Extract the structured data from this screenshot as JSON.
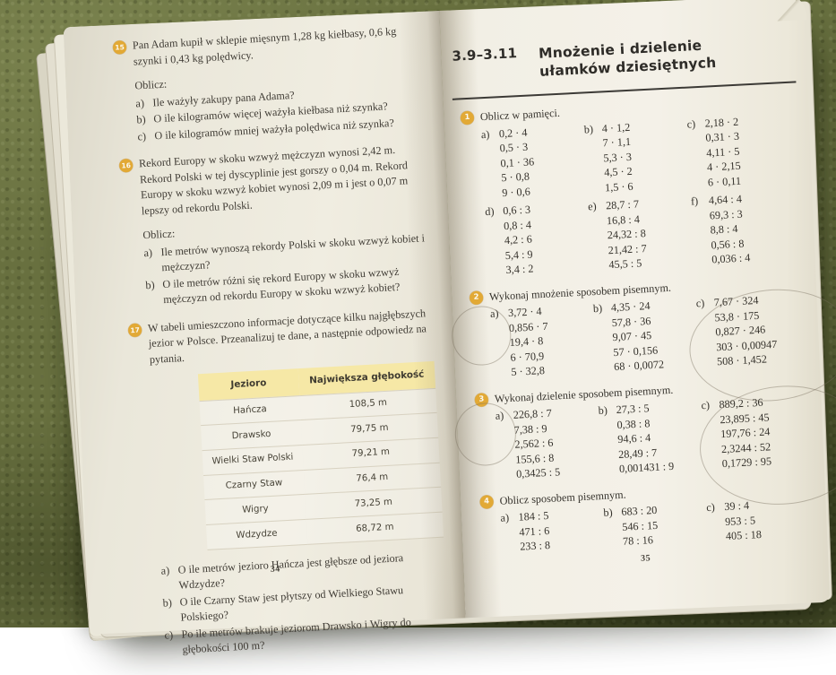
{
  "colors": {
    "carpet_green": "#68703f",
    "page_cream": "#f0ede1",
    "badge_yellow": "#e2a935",
    "table_header_yellow": "#f6e8a6",
    "bookmark_maroon": "#5b2c1f"
  },
  "left_page": {
    "page_number": "34",
    "problems": [
      {
        "number": "15",
        "text": "Pan Adam kupił w sklepie mięsnym 1,28 kg kiełbasy, 0,6 kg szynki i 0,43 kg polędwicy.",
        "compute_label": "Oblicz:",
        "questions": [
          {
            "label": "a)",
            "text": "Ile ważyły zakupy pana Adama?"
          },
          {
            "label": "b)",
            "text": "O ile kilogramów więcej ważyła kiełbasa niż szynka?"
          },
          {
            "label": "c)",
            "text": "O ile kilogramów mniej ważyła polędwica niż szynka?"
          }
        ]
      },
      {
        "number": "16",
        "text": "Rekord Europy w skoku wzwyż mężczyzn wynosi 2,42 m. Rekord Polski w tej dyscyplinie jest gorszy o 0,04 m. Rekord Europy w skoku wzwyż kobiet wynosi 2,09 m i jest o 0,07 m lepszy od rekordu Polski.",
        "compute_label": "Oblicz:",
        "questions": [
          {
            "label": "a)",
            "text": "Ile metrów wynoszą rekordy Polski w skoku wzwyż kobiet i mężczyzn?"
          },
          {
            "label": "b)",
            "text": "O ile metrów różni się rekord Europy w skoku wzwyż mężczyzn od rekordu Europy w skoku wzwyż kobiet?"
          }
        ]
      },
      {
        "number": "17",
        "text": "W tabeli umieszczono informacje dotyczące kilku najgłębszych jezior w Polsce. Przeanalizuj te dane, a następnie odpowiedz na pytania.",
        "questions": [
          {
            "label": "a)",
            "text": "O ile metrów jezioro Hańcza jest głębsze od jeziora Wdzydze?"
          },
          {
            "label": "b)",
            "text": "O ile Czarny Staw jest płytszy od Wielkiego Stawu Polskiego?"
          },
          {
            "label": "c)",
            "text": "Po ile metrów brakuje jeziorom Drawsko i Wigry do głębokości 100 m?"
          }
        ]
      }
    ],
    "table": {
      "headers": [
        "Jezioro",
        "Największa głębokość"
      ],
      "rows": [
        [
          "Hańcza",
          "108,5 m"
        ],
        [
          "Drawsko",
          "79,75 m"
        ],
        [
          "Wielki Staw Polski",
          "79,21 m"
        ],
        [
          "Czarny Staw",
          "76,4 m"
        ],
        [
          "Wigry",
          "73,25 m"
        ],
        [
          "Wdzydze",
          "68,72 m"
        ]
      ]
    }
  },
  "right_page": {
    "page_number": "35",
    "section_number": "3.9–3.11",
    "section_title": "Mnożenie i dzielenie ułamków dziesiętnych",
    "exercises": [
      {
        "number": "1",
        "instruction": "Oblicz w pamięci.",
        "columns": [
          {
            "label": "a)",
            "items": [
              "0,2 · 4",
              "0,5 · 3",
              "0,1 · 36",
              "5 · 0,8",
              "9 · 0,6"
            ]
          },
          {
            "label": "b)",
            "items": [
              "4 · 1,2",
              "7 · 1,1",
              "5,3 · 3",
              "4,5 · 2",
              "1,5 · 6"
            ]
          },
          {
            "label": "c)",
            "items": [
              "2,18 · 2",
              "0,31 · 3",
              "4,11 · 5",
              "4 · 2,15",
              "6 · 0,11"
            ]
          },
          {
            "label": "d)",
            "items": [
              "0,6 : 3",
              "0,8 : 4",
              "4,2 : 6",
              "5,4 : 9",
              "3,4 : 2"
            ]
          },
          {
            "label": "e)",
            "items": [
              "28,7 : 7",
              "16,8 : 4",
              "24,32 : 8",
              "21,42 : 7",
              "45,5 : 5"
            ]
          },
          {
            "label": "f)",
            "items": [
              "4,64 : 4",
              "69,3 : 3",
              "8,8 : 4",
              "0,56 : 8",
              "0,036 : 4"
            ]
          }
        ]
      },
      {
        "number": "2",
        "instruction": "Wykonaj mnożenie sposobem pisemnym.",
        "columns": [
          {
            "label": "a)",
            "items": [
              "3,72 · 4",
              "0,856 · 7",
              "19,4 · 8",
              "6 · 70,9",
              "5 · 32,8"
            ]
          },
          {
            "label": "b)",
            "items": [
              "4,35 · 24",
              "57,8 · 36",
              "9,07 · 45",
              "57 · 0,156",
              "68 · 0,0072"
            ]
          },
          {
            "label": "c)",
            "items": [
              "7,67 · 324",
              "53,8 · 175",
              "0,827 · 246",
              "303 · 0,00947",
              "508 · 1,452"
            ]
          }
        ]
      },
      {
        "number": "3",
        "instruction": "Wykonaj dzielenie sposobem pisemnym.",
        "columns": [
          {
            "label": "a)",
            "items": [
              "226,8 : 7",
              "7,38 : 9",
              "2,562 : 6",
              "155,6 : 8",
              "0,3425 : 5"
            ]
          },
          {
            "label": "b)",
            "items": [
              "27,3 : 5",
              "0,38 : 8",
              "94,6 : 4",
              "28,49 : 7",
              "0,001431 : 9"
            ]
          },
          {
            "label": "c)",
            "items": [
              "889,2 : 36",
              "23,895 : 45",
              "197,76 : 24",
              "2,3244 : 52",
              "0,1729 : 95"
            ]
          }
        ]
      },
      {
        "number": "4",
        "instruction": "Oblicz sposobem pisemnym.",
        "columns": [
          {
            "label": "a)",
            "items": [
              "184 : 5",
              "471 : 6",
              "233 : 8"
            ]
          },
          {
            "label": "b)",
            "items": [
              "683 : 20",
              "546 : 15",
              "78 : 16"
            ]
          },
          {
            "label": "c)",
            "items": [
              "39 : 4",
              "953 : 5",
              "405 : 18"
            ]
          }
        ]
      }
    ]
  }
}
